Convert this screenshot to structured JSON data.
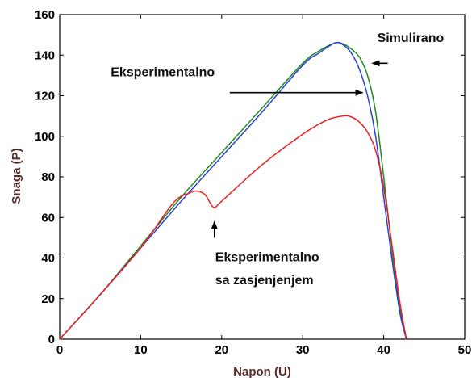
{
  "chart_data": {
    "type": "line",
    "title": "",
    "xlabel": "Napon (U)",
    "ylabel": "Snaga (P)",
    "xlim": [
      0,
      50
    ],
    "ylim": [
      0,
      160
    ],
    "xticks": [
      "0",
      "10",
      "20",
      "30",
      "40",
      "50"
    ],
    "yticks": [
      "0",
      "20",
      "40",
      "60",
      "80",
      "100",
      "120",
      "140",
      "160"
    ],
    "grid": false,
    "legend": "none",
    "series": [
      {
        "color": "#1f8a1f",
        "x": [
          0,
          5,
          10,
          15,
          20,
          25,
          30,
          32,
          34,
          35,
          36,
          37,
          38,
          39,
          40,
          41,
          42,
          42.8
        ],
        "y": [
          0,
          22,
          46,
          70,
          92,
          114,
          136,
          142,
          146,
          145.5,
          143,
          139,
          130,
          112,
          80,
          45,
          15,
          0
        ]
      },
      {
        "color": "#2a3fd6",
        "x": [
          0,
          5,
          10,
          15,
          20,
          25,
          30,
          32,
          34,
          35,
          36,
          37,
          38,
          39,
          40,
          41,
          42,
          42.8
        ],
        "y": [
          0,
          22,
          45,
          68,
          90,
          112,
          135,
          141,
          146,
          145,
          141,
          133,
          120,
          100,
          70,
          40,
          13,
          0
        ]
      },
      {
        "color": "#e82020",
        "x": [
          0,
          5,
          10,
          14,
          16,
          17,
          18,
          19,
          20,
          25,
          30,
          33,
          35,
          36,
          37,
          38,
          39,
          40,
          41,
          42,
          42.8
        ],
        "y": [
          0,
          22,
          45,
          67,
          72,
          73,
          71,
          65,
          68,
          86,
          101,
          108,
          110,
          109.5,
          107,
          102,
          93,
          75,
          47,
          18,
          0
        ]
      }
    ],
    "annotations": [
      {
        "text": "Simulirano",
        "x": 39.2,
        "y": 146.5
      },
      {
        "text": "Eksperimentalno",
        "x": 6.3,
        "y": 129.5
      },
      {
        "text": "Eksperimentalno",
        "x": 19.2,
        "y": 38.5
      },
      {
        "text": "sa zasjenjenjem",
        "x": 19.2,
        "y": 27
      }
    ],
    "arrows": [
      {
        "from": [
          40.5,
          136
        ],
        "to": [
          38.6,
          136
        ]
      },
      {
        "from": [
          21,
          121.5
        ],
        "to": [
          37.4,
          121.5
        ]
      },
      {
        "from": [
          19.1,
          50
        ],
        "to": [
          19.1,
          58
        ]
      }
    ]
  }
}
